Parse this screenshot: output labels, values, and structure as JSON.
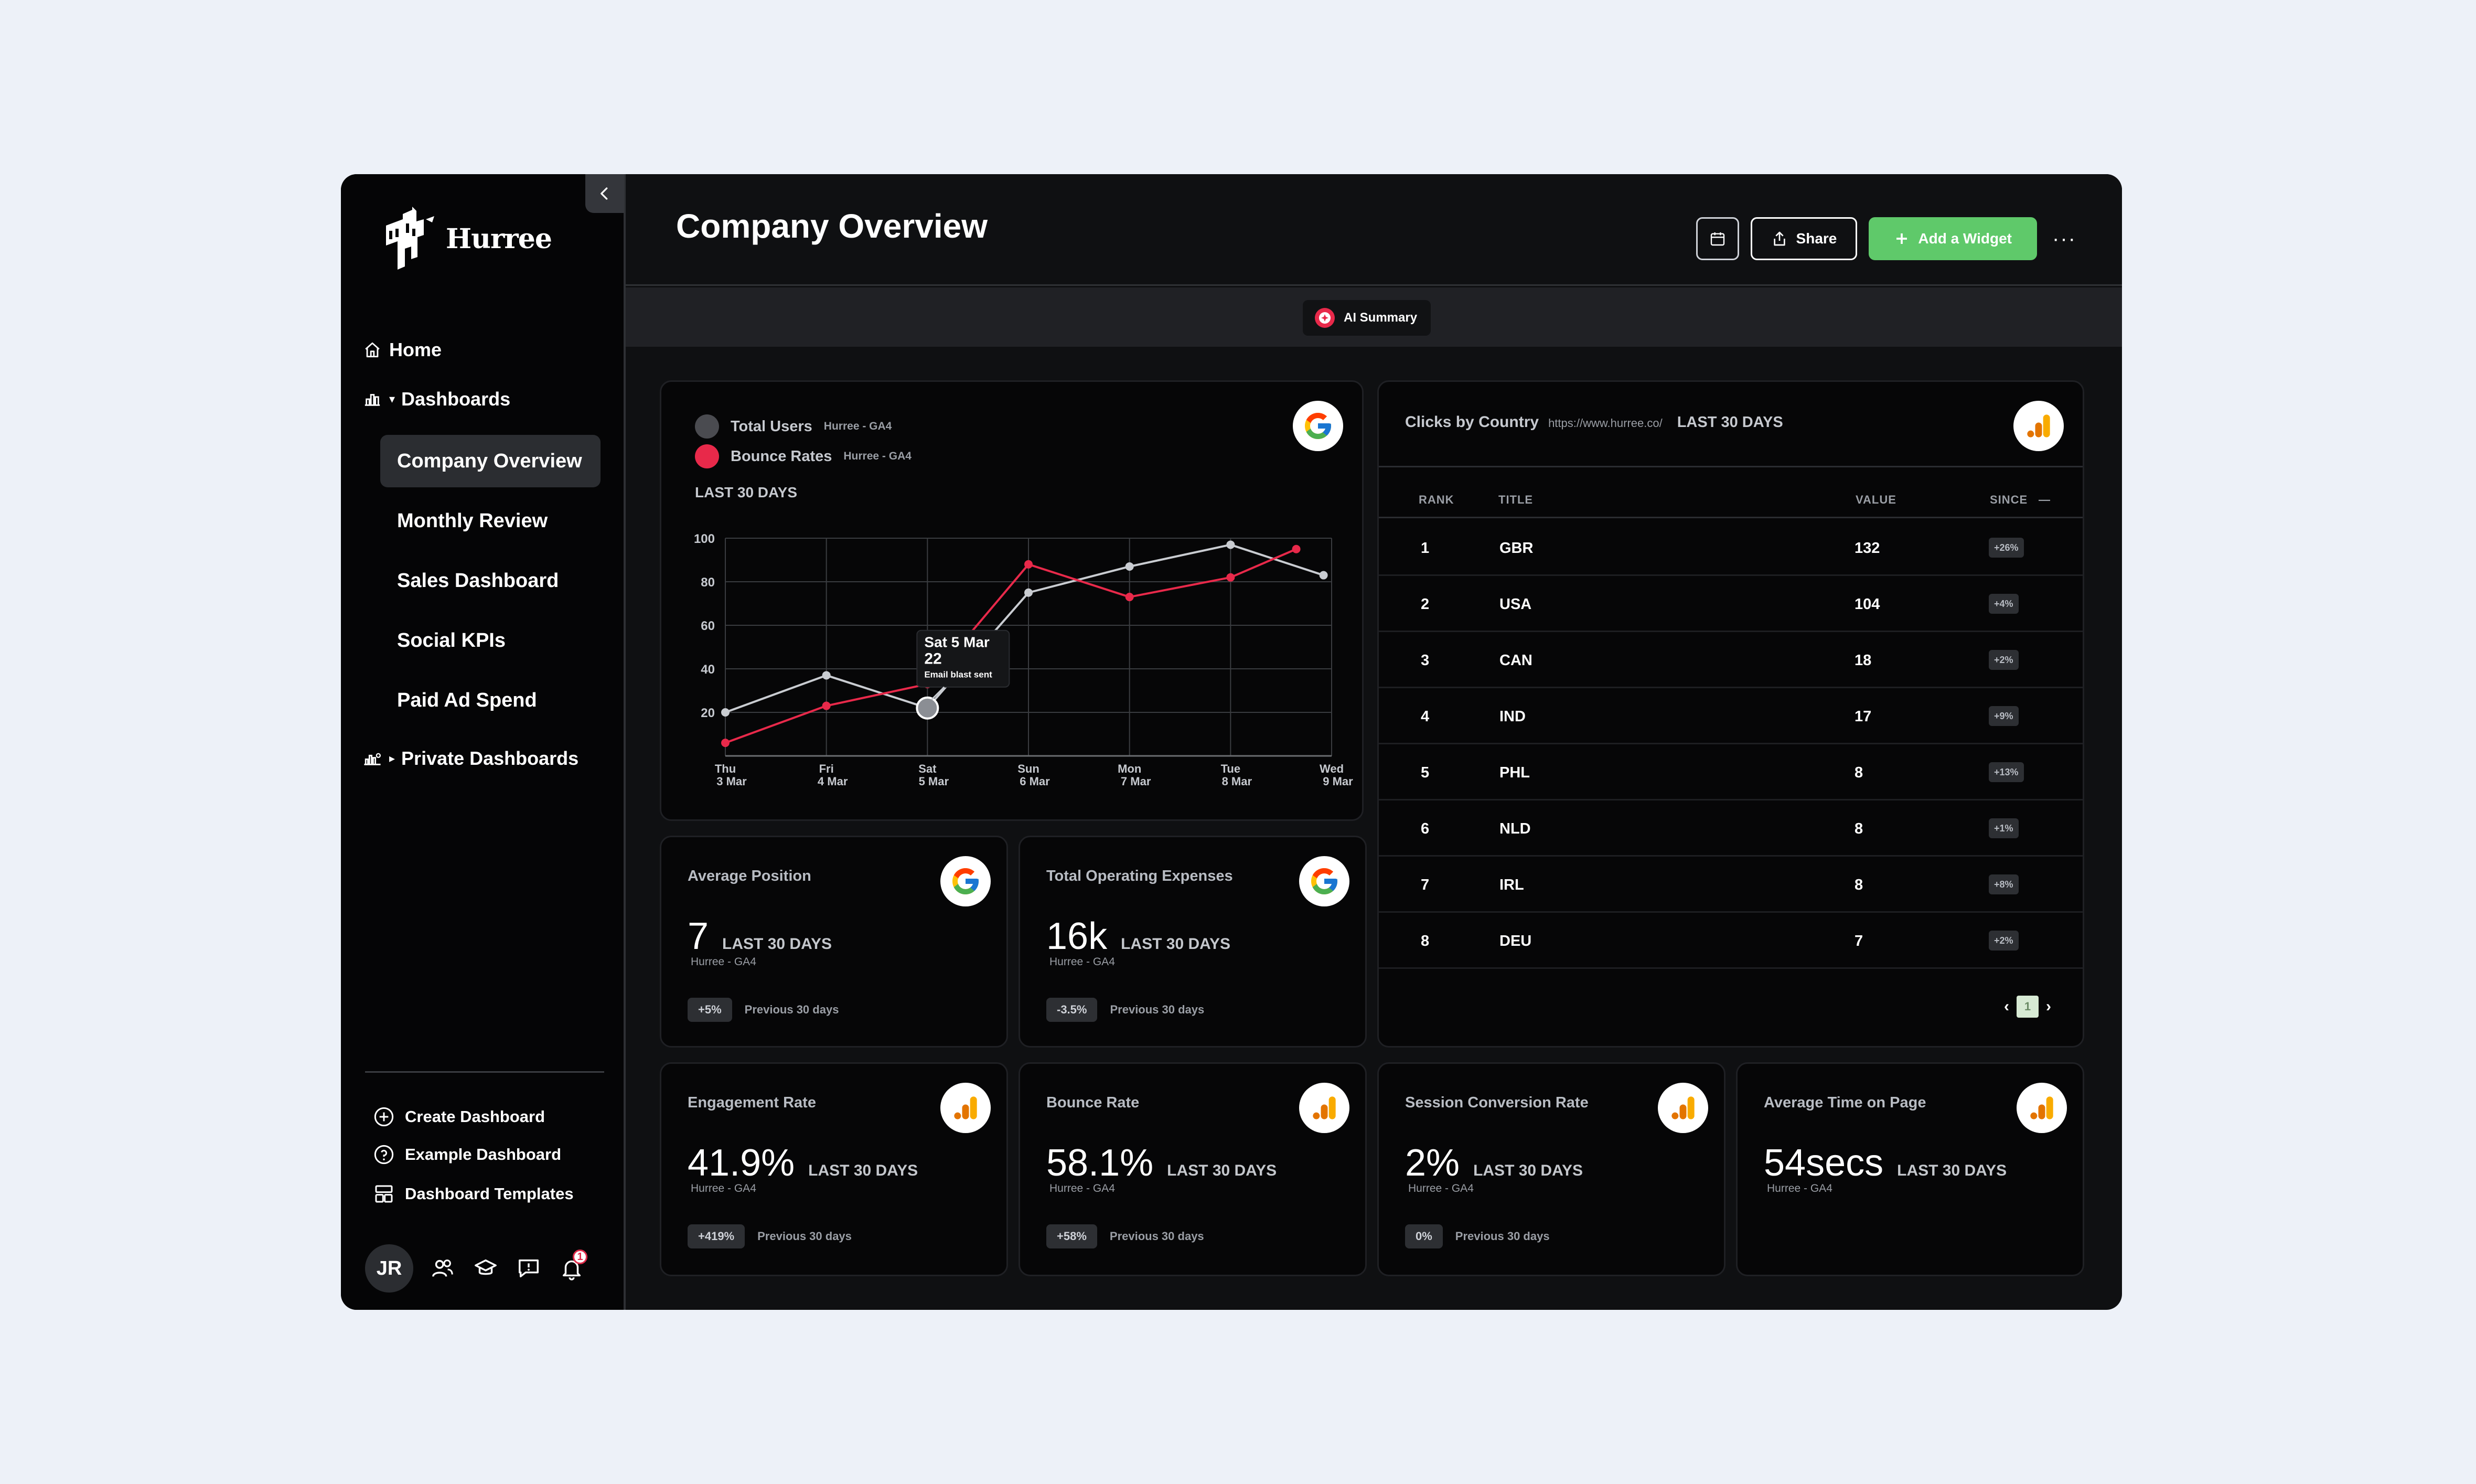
{
  "brand": {
    "name": "Hurree",
    "accent": "#5fc96a",
    "red": "#e8294a"
  },
  "nav": {
    "home": "Home",
    "dashboards": "Dashboards",
    "items": [
      {
        "label": "Company Overview",
        "active": true
      },
      {
        "label": "Monthly Review",
        "active": false
      },
      {
        "label": "Sales Dashboard",
        "active": false
      },
      {
        "label": "Social KPIs",
        "active": false
      },
      {
        "label": "Paid Ad Spend",
        "active": false
      }
    ],
    "private_dashboards": "Private Dashboards"
  },
  "sidebar_links": {
    "create": "Create Dashboard",
    "example": "Example Dashboard",
    "templates": "Dashboard Templates"
  },
  "user": {
    "initials": "JR",
    "notifications": "1"
  },
  "header": {
    "title": "Company Overview",
    "share": "Share",
    "add_widget": "Add a Widget",
    "more": "···"
  },
  "ai_summary": "AI Summary",
  "chart_widget": {
    "period": "LAST 30 DAYS",
    "legend": [
      {
        "name": "Total Users",
        "source": "Hurree - GA4",
        "color": "#4a4b50"
      },
      {
        "name": "Bounce Rates",
        "source": "Hurree - GA4",
        "color": "#e8294a"
      }
    ],
    "tooltip": {
      "date": "Sat 5 Mar",
      "value": "22",
      "note": "Email blast sent"
    }
  },
  "chart_data": {
    "type": "line",
    "categories": [
      "Thu 3 Mar",
      "Fri 4 Mar",
      "Sat 5 Mar",
      "Sun 6 Mar",
      "Mon 7 Mar",
      "Tue 8 Mar",
      "Wed 9 Mar"
    ],
    "x_tick_lines": [
      [
        "Thu",
        "3 Mar"
      ],
      [
        "Fri",
        "4 Mar"
      ],
      [
        "Sat",
        "5 Mar"
      ],
      [
        "Sun",
        "6 Mar"
      ],
      [
        "Mon",
        "7 Mar"
      ],
      [
        "Tue",
        "8 Mar"
      ],
      [
        "Wed",
        "9 Mar"
      ]
    ],
    "ylim": [
      0,
      100
    ],
    "yticks": [
      20,
      40,
      60,
      80,
      100
    ],
    "grid": true,
    "series": [
      {
        "name": "Total Users",
        "color": "#c9ccd1",
        "x": [
          0,
          1,
          2,
          3,
          4,
          5,
          5.92
        ],
        "values": [
          20,
          37,
          22,
          75,
          87,
          97,
          83
        ]
      },
      {
        "name": "Bounce Rates",
        "color": "#e8294a",
        "x": [
          0,
          1,
          2,
          3,
          4,
          5,
          5.65
        ],
        "values": [
          6,
          23,
          33,
          88,
          73,
          82,
          95
        ]
      }
    ]
  },
  "table_widget": {
    "title": "Clicks by Country",
    "url": "https://www.hurree.co/",
    "period": "LAST 30 DAYS",
    "columns": [
      "RANK",
      "TITLE",
      "VALUE",
      "SINCE"
    ],
    "rows": [
      {
        "rank": "1",
        "title": "GBR",
        "value": "132",
        "since": "+26%"
      },
      {
        "rank": "2",
        "title": "USA",
        "value": "104",
        "since": "+4%"
      },
      {
        "rank": "3",
        "title": "CAN",
        "value": "18",
        "since": "+2%"
      },
      {
        "rank": "4",
        "title": "IND",
        "value": "17",
        "since": "+9%"
      },
      {
        "rank": "5",
        "title": "PHL",
        "value": "8",
        "since": "+13%"
      },
      {
        "rank": "6",
        "title": "NLD",
        "value": "8",
        "since": "+1%"
      },
      {
        "rank": "7",
        "title": "IRL",
        "value": "8",
        "since": "+8%"
      },
      {
        "rank": "8",
        "title": "DEU",
        "value": "7",
        "since": "+2%"
      }
    ],
    "page": "1"
  },
  "metrics": {
    "avg_position": {
      "title": "Average Position",
      "value": "7",
      "period": "LAST 30 DAYS",
      "source": "Hurree - GA4",
      "change": "+5%",
      "change_label": "Previous 30 days"
    },
    "operating_expenses": {
      "title": "Total Operating Expenses",
      "value": "16k",
      "period": "LAST 30 DAYS",
      "source": "Hurree - GA4",
      "change": "-3.5%",
      "change_label": "Previous 30 days"
    },
    "engagement_rate": {
      "title": "Engagement Rate",
      "value": "41.9%",
      "period": "LAST 30 DAYS",
      "source": "Hurree - GA4",
      "change": "+419%",
      "change_label": "Previous 30 days"
    },
    "bounce_rate": {
      "title": "Bounce Rate",
      "value": "58.1%",
      "period": "LAST 30 DAYS",
      "source": "Hurree - GA4",
      "change": "+58%",
      "change_label": "Previous 30 days"
    },
    "session_conversion": {
      "title": "Session Conversion Rate",
      "value": "2%",
      "period": "LAST 30 DAYS",
      "source": "Hurree - GA4",
      "change": "0%",
      "change_label": "Previous 30 days"
    },
    "avg_time": {
      "title": "Average Time on Page",
      "value": "54secs",
      "period": "LAST 30 DAYS",
      "source": "Hurree - GA4"
    }
  }
}
